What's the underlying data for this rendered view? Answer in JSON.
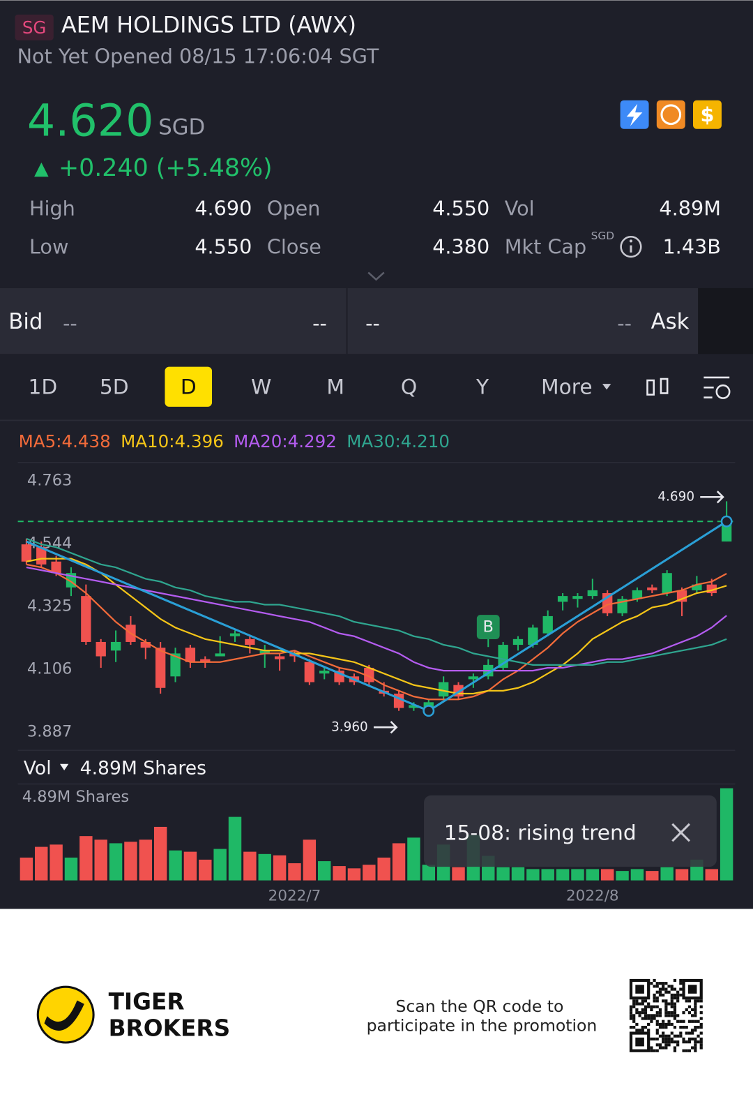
{
  "header": {
    "market": "SG",
    "title": "AEM HOLDINGS LTD (AWX)",
    "status": "Not Yet Opened 08/15 17:06:04 SGT"
  },
  "quote": {
    "price": "4.620",
    "currency": "SGD",
    "change": "+0.240 (+5.48%)"
  },
  "stats": [
    [
      {
        "label": "High",
        "value": "4.690"
      },
      {
        "label": "Open",
        "value": "4.550"
      },
      {
        "label": "Vol",
        "value": "4.89M"
      }
    ],
    [
      {
        "label": "Low",
        "value": "4.550"
      },
      {
        "label": "Close",
        "value": "4.380"
      },
      {
        "label": "Mkt Cap",
        "unit": "SGD",
        "value": "1.43B"
      }
    ]
  ],
  "order_book": {
    "bid_label": "Bid",
    "bid_price": "--",
    "bid_size": "--",
    "ask_size": "--",
    "ask_price": "--",
    "ask_label": "Ask"
  },
  "periods": [
    "1D",
    "5D",
    "D",
    "W",
    "M",
    "Q",
    "Y",
    "More"
  ],
  "active_period": "D",
  "chart_data": [
    {
      "type": "candlestick",
      "categories": [
        null,
        null,
        null,
        null,
        null,
        null,
        null,
        null,
        null,
        null,
        null,
        null,
        null,
        null,
        null,
        null,
        null,
        null,
        "2022/7",
        null,
        null,
        null,
        null,
        null,
        null,
        null,
        null,
        null,
        null,
        null,
        null,
        null,
        null,
        null,
        null,
        null,
        null,
        null,
        "2022/8",
        null,
        null,
        null,
        null,
        null,
        null,
        null,
        null,
        null
      ],
      "open": [
        4.54,
        4.53,
        4.48,
        4.39,
        4.36,
        4.2,
        4.17,
        4.26,
        4.2,
        4.18,
        4.08,
        4.18,
        4.14,
        4.15,
        4.22,
        4.21,
        4.16,
        4.15,
        4.16,
        4.13,
        4.09,
        4.1,
        4.08,
        4.11,
        4.03,
        4.02,
        3.97,
        3.97,
        4.01,
        4.05,
        4.07,
        4.08,
        4.11,
        4.19,
        4.19,
        4.23,
        4.34,
        4.35,
        4.36,
        4.37,
        4.3,
        4.35,
        4.39,
        4.37,
        4.38,
        4.38,
        4.4,
        4.55
      ],
      "high": [
        4.56,
        4.55,
        4.5,
        4.46,
        4.4,
        4.21,
        4.24,
        4.29,
        4.21,
        4.2,
        4.18,
        4.19,
        4.15,
        4.22,
        4.24,
        4.22,
        4.19,
        4.16,
        4.17,
        4.14,
        4.11,
        4.11,
        4.09,
        4.12,
        4.06,
        4.03,
        3.99,
        4.0,
        4.08,
        4.06,
        4.09,
        4.14,
        4.2,
        4.22,
        4.26,
        4.31,
        4.37,
        4.37,
        4.42,
        4.38,
        4.36,
        4.39,
        4.4,
        4.45,
        4.39,
        4.43,
        4.42,
        4.69
      ],
      "low": [
        4.47,
        4.46,
        4.43,
        4.36,
        4.19,
        4.11,
        4.13,
        4.19,
        4.14,
        4.02,
        4.06,
        4.11,
        4.11,
        4.15,
        4.2,
        4.16,
        4.11,
        4.1,
        4.13,
        4.05,
        4.07,
        4.05,
        4.05,
        4.05,
        4.01,
        3.96,
        3.96,
        3.96,
        4.0,
        4.0,
        4.04,
        4.07,
        4.1,
        4.17,
        4.18,
        4.22,
        4.31,
        4.32,
        4.35,
        4.29,
        4.29,
        4.34,
        4.37,
        4.36,
        4.29,
        4.37,
        4.36,
        4.55
      ],
      "close": [
        4.48,
        4.47,
        4.44,
        4.44,
        4.2,
        4.15,
        4.2,
        4.2,
        4.18,
        4.04,
        4.16,
        4.13,
        4.13,
        4.16,
        4.23,
        4.19,
        4.17,
        4.14,
        4.15,
        4.06,
        4.1,
        4.06,
        4.06,
        4.06,
        4.02,
        3.97,
        3.98,
        3.99,
        4.06,
        4.01,
        4.08,
        4.12,
        4.19,
        4.21,
        4.25,
        4.29,
        4.36,
        4.36,
        4.38,
        4.3,
        4.35,
        4.38,
        4.38,
        4.44,
        4.34,
        4.4,
        4.37,
        4.62
      ],
      "up_color": "#1fb866",
      "down_color": "#f0524f",
      "ylim": [
        3.887,
        4.763
      ],
      "yticks": [
        4.763,
        4.544,
        4.325,
        4.106,
        3.887
      ],
      "grid": false,
      "series": [
        {
          "name": "MA5:4.438",
          "color": "#f26b3a",
          "values": [
            4.47,
            4.46,
            4.44,
            4.41,
            4.37,
            4.32,
            4.27,
            4.23,
            4.2,
            4.17,
            4.15,
            4.13,
            4.13,
            4.13,
            4.14,
            4.15,
            4.16,
            4.16,
            4.17,
            4.15,
            4.13,
            4.11,
            4.1,
            4.08,
            4.05,
            4.03,
            4.01,
            4.0,
            4.0,
            4.0,
            4.01,
            4.03,
            4.07,
            4.1,
            4.14,
            4.18,
            4.23,
            4.27,
            4.3,
            4.33,
            4.34,
            4.35,
            4.36,
            4.37,
            4.38,
            4.4,
            4.41,
            4.438
          ]
        },
        {
          "name": "MA10:4.396",
          "color": "#f5c518",
          "values": [
            4.48,
            4.49,
            4.49,
            4.49,
            4.47,
            4.44,
            4.4,
            4.36,
            4.32,
            4.28,
            4.25,
            4.23,
            4.21,
            4.2,
            4.19,
            4.18,
            4.17,
            4.17,
            4.16,
            4.16,
            4.15,
            4.14,
            4.13,
            4.11,
            4.09,
            4.07,
            4.05,
            4.04,
            4.03,
            4.02,
            4.02,
            4.03,
            4.03,
            4.04,
            4.06,
            4.09,
            4.12,
            4.16,
            4.21,
            4.24,
            4.27,
            4.29,
            4.32,
            4.33,
            4.35,
            4.37,
            4.38,
            4.396
          ]
        },
        {
          "name": "MA20:4.292",
          "color": "#b45cf0",
          "values": [
            4.46,
            4.45,
            4.44,
            4.43,
            4.42,
            4.41,
            4.4,
            4.39,
            4.38,
            4.37,
            4.36,
            4.35,
            4.34,
            4.33,
            4.32,
            4.31,
            4.3,
            4.29,
            4.28,
            4.27,
            4.25,
            4.23,
            4.22,
            4.2,
            4.18,
            4.16,
            4.13,
            4.11,
            4.1,
            4.1,
            4.1,
            4.1,
            4.1,
            4.1,
            4.1,
            4.11,
            4.11,
            4.12,
            4.13,
            4.14,
            4.14,
            4.15,
            4.16,
            4.18,
            4.2,
            4.22,
            4.25,
            4.292
          ]
        },
        {
          "name": "MA30:4.210",
          "color": "#2fa58f",
          "values": [
            4.56,
            4.54,
            4.53,
            4.51,
            4.49,
            4.47,
            4.46,
            4.44,
            4.42,
            4.41,
            4.39,
            4.38,
            4.36,
            4.35,
            4.34,
            4.34,
            4.33,
            4.33,
            4.32,
            4.31,
            4.3,
            4.29,
            4.27,
            4.26,
            4.25,
            4.24,
            4.22,
            4.21,
            4.19,
            4.18,
            4.16,
            4.15,
            4.14,
            4.13,
            4.12,
            4.12,
            4.12,
            4.12,
            4.12,
            4.13,
            4.13,
            4.14,
            4.15,
            4.16,
            4.17,
            4.18,
            4.19,
            4.21
          ]
        }
      ],
      "price_line": {
        "value": 4.62,
        "color": "#1fb866"
      },
      "high_marker": {
        "x": 47,
        "value": 4.69,
        "label": "4.690"
      },
      "low_marker": {
        "x": 27,
        "value": 3.96,
        "label": "3.960"
      },
      "trendline": {
        "x": [
          0,
          27,
          47
        ],
        "values": [
          4.55,
          3.96,
          4.62
        ],
        "color": "#2a9fd6"
      },
      "signals": [
        {
          "x": 31,
          "label": "B"
        }
      ]
    },
    {
      "type": "bar",
      "title": "Vol",
      "subtitle": "4.89M Shares",
      "values": [
        1.21,
        1.78,
        1.9,
        1.21,
        2.35,
        2.16,
        1.97,
        2.05,
        2.16,
        2.84,
        1.59,
        1.52,
        1.1,
        1.67,
        3.37,
        1.52,
        1.4,
        1.33,
        0.91,
        2.16,
        1.02,
        0.76,
        0.64,
        0.83,
        1.21,
        1.97,
        2.27,
        0.83,
        1.9,
        0.7,
        2.4,
        1.3,
        0.7,
        0.7,
        0.6,
        0.6,
        0.6,
        0.6,
        0.6,
        0.6,
        0.5,
        0.6,
        0.5,
        0.7,
        0.6,
        1.1,
        0.6,
        4.89
      ],
      "ylim": [
        0,
        4.89
      ],
      "yticks": [
        {
          "value": 4.89,
          "label": "4.89M Shares"
        }
      ]
    }
  ],
  "tooltip": {
    "text": "15-08: rising trend"
  },
  "footer": {
    "brand": [
      "TIGER",
      "BROKERS"
    ],
    "promo": [
      "Scan the QR code to",
      "participate in the promotion"
    ]
  }
}
